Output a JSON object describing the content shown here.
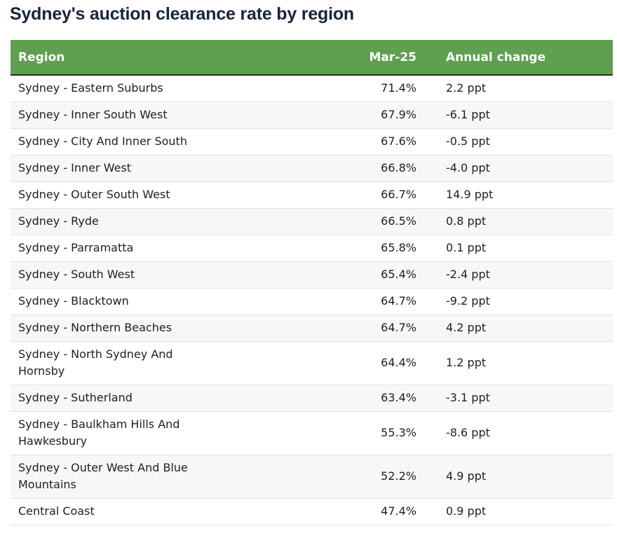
{
  "title": "Sydney's auction clearance rate by region",
  "colors": {
    "header_bg": "#5ea04f",
    "header_text": "#ffffff",
    "title": "#18243c"
  },
  "chart_data": {
    "type": "table",
    "title": "Sydney's auction clearance rate by region",
    "columns": [
      "Region",
      "Mar-25",
      "Annual change"
    ],
    "rows": [
      {
        "region": "Sydney - Eastern Suburbs",
        "mar25": "71.4%",
        "change": "2.2 ppt"
      },
      {
        "region": "Sydney - Inner South West",
        "mar25": "67.9%",
        "change": "-6.1 ppt"
      },
      {
        "region": "Sydney - City And Inner South",
        "mar25": "67.6%",
        "change": "-0.5 ppt"
      },
      {
        "region": "Sydney - Inner West",
        "mar25": "66.8%",
        "change": "-4.0 ppt"
      },
      {
        "region": "Sydney - Outer South West",
        "mar25": "66.7%",
        "change": "14.9 ppt"
      },
      {
        "region": "Sydney - Ryde",
        "mar25": "66.5%",
        "change": "0.8 ppt"
      },
      {
        "region": "Sydney - Parramatta",
        "mar25": "65.8%",
        "change": "0.1 ppt"
      },
      {
        "region": "Sydney - South West",
        "mar25": "65.4%",
        "change": "-2.4 ppt"
      },
      {
        "region": "Sydney - Blacktown",
        "mar25": "64.7%",
        "change": "-9.2 ppt"
      },
      {
        "region": "Sydney - Northern Beaches",
        "mar25": "64.7%",
        "change": "4.2 ppt"
      },
      {
        "region": "Sydney - North Sydney And Hornsby",
        "mar25": "64.4%",
        "change": "1.2 ppt"
      },
      {
        "region": "Sydney - Sutherland",
        "mar25": "63.4%",
        "change": "-3.1 ppt"
      },
      {
        "region": "Sydney - Baulkham Hills And Hawkesbury",
        "mar25": "55.3%",
        "change": "-8.6 ppt"
      },
      {
        "region": "Sydney - Outer West And Blue Mountains",
        "mar25": "52.2%",
        "change": "4.9 ppt"
      },
      {
        "region": "Central Coast",
        "mar25": "47.4%",
        "change": "0.9 ppt"
      }
    ]
  }
}
